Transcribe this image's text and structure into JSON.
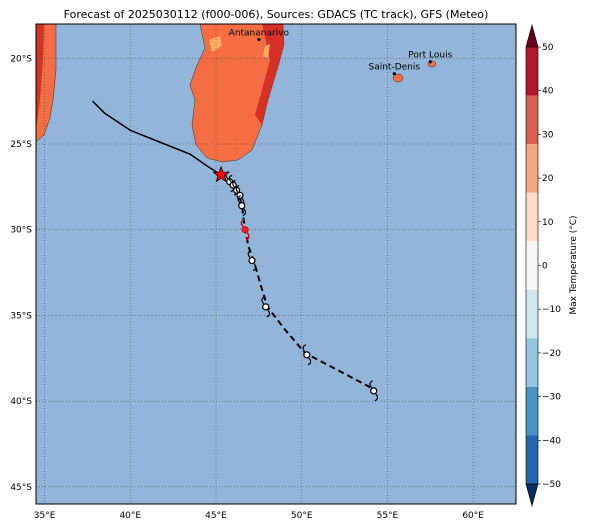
{
  "title": "Forecast of 2025030112 (f000-006), Sources: GDACS (TC track), GFS (Meteo)",
  "lon_ticks": [
    "35°E",
    "40°E",
    "45°E",
    "50°E",
    "55°E",
    "60°E"
  ],
  "lat_ticks": [
    "20°S",
    "25°S",
    "30°S",
    "35°S",
    "40°S",
    "45°S"
  ],
  "cities": [
    {
      "name": "Antananarivo",
      "lon": 47.5,
      "lat": -18.9
    },
    {
      "name": "Port Louis",
      "lon": 57.5,
      "lat": -20.2
    },
    {
      "name": "Saint-Denis",
      "lon": 55.4,
      "lat": -20.9
    }
  ],
  "colorbar": {
    "label": "Max Temperature (°C)",
    "ticks": [
      "50",
      "40",
      "30",
      "20",
      "10",
      "0",
      "−10",
      "−20",
      "−30",
      "−40",
      "−50"
    ],
    "colors": [
      "#67001f",
      "#b2182b",
      "#d6604d",
      "#f4a582",
      "#fddbc7",
      "#f7f7f7",
      "#d1e5f0",
      "#92c5de",
      "#4393c3",
      "#2166ac",
      "#053061"
    ]
  },
  "colors": {
    "ocean": "#92b5d9",
    "land_hot": "#f46d43",
    "land_hotter": "#d73027",
    "land_warm": "#fdae61"
  },
  "track": {
    "past": [
      [
        37.8,
        -22.5
      ],
      [
        38.5,
        -23.2
      ],
      [
        40,
        -24.2
      ],
      [
        42,
        -25
      ],
      [
        43.5,
        -25.6
      ],
      [
        44.5,
        -26.3
      ],
      [
        45.3,
        -26.8
      ]
    ],
    "current": [
      45.3,
      -26.8
    ],
    "forecast": [
      [
        45.7,
        -27.2
      ],
      [
        46.0,
        -27.5
      ],
      [
        46.3,
        -27.9
      ],
      [
        46.5,
        -28.5
      ],
      [
        46.6,
        -29.3
      ],
      [
        46.7,
        -30.0
      ],
      [
        46.9,
        -31.0
      ],
      [
        47.2,
        -31.8
      ],
      [
        47.6,
        -33.2
      ],
      [
        48.0,
        -34.5
      ],
      [
        49.0,
        -35.8
      ],
      [
        50.2,
        -37.2
      ],
      [
        52.5,
        -38.4
      ],
      [
        54.2,
        -39.3
      ]
    ],
    "symbols": [
      [
        45.8,
        -27.2
      ],
      [
        46.0,
        -27.4
      ],
      [
        46.2,
        -27.7
      ],
      [
        46.4,
        -28.0
      ],
      [
        46.5,
        -28.6
      ],
      [
        47.1,
        -31.8
      ],
      [
        47.9,
        -34.5
      ],
      [
        50.3,
        -37.3
      ],
      [
        54.2,
        -39.4
      ]
    ],
    "red_symbol": [
      46.7,
      -30.0
    ]
  }
}
